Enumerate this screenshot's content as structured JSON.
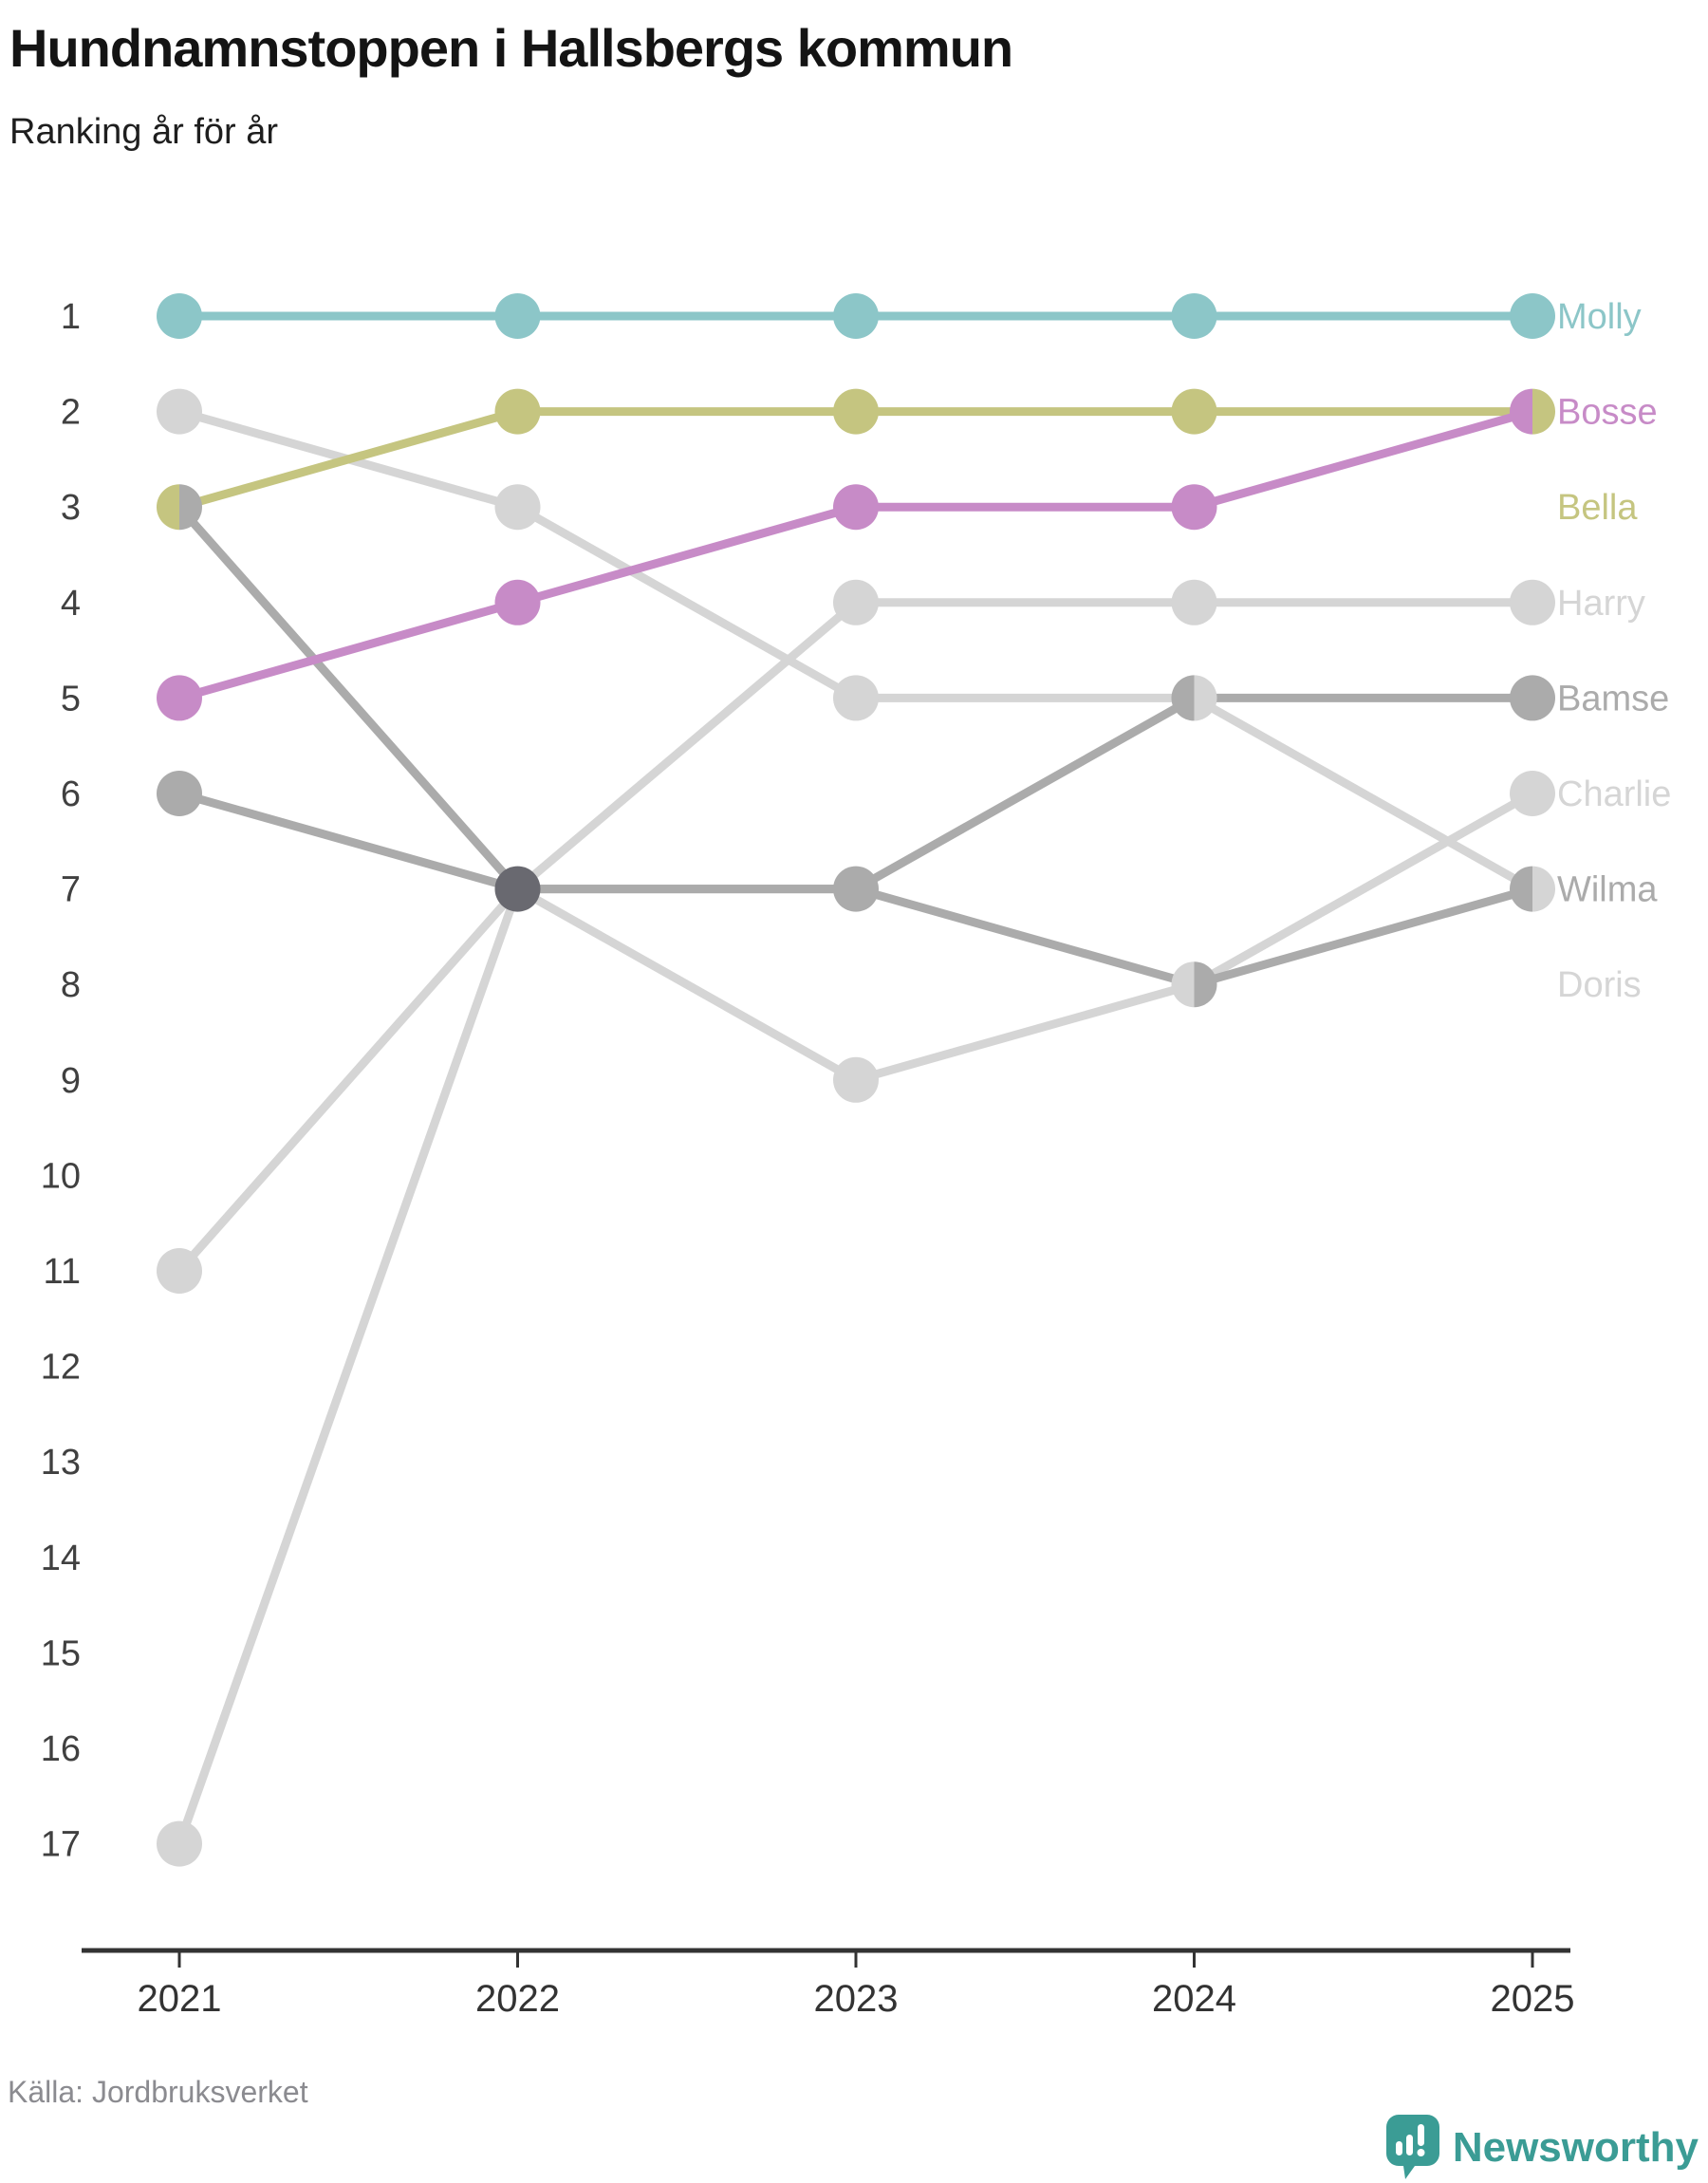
{
  "header": {
    "title": "Hundnamnstoppen i Hallsbergs kommun",
    "subtitle": "Ranking år för år"
  },
  "chart_data": {
    "type": "line",
    "subtype": "bump-ranking",
    "title": "Hundnamnstoppen i Hallsbergs kommun",
    "subtitle": "Ranking år för år",
    "xlabel": "",
    "ylabel": "",
    "x": [
      2021,
      2022,
      2023,
      2024,
      2025
    ],
    "y_ranks": [
      1,
      2,
      3,
      4,
      5,
      6,
      7,
      8,
      9,
      10,
      11,
      12,
      13,
      14,
      15,
      16,
      17
    ],
    "y_axis_inverted": true,
    "grid": false,
    "legend_position": "right-inline-labels",
    "series": [
      {
        "name": "Molly",
        "color": "#8cc6c8",
        "ranks": [
          1,
          1,
          1,
          1,
          1
        ],
        "label_row": 1
      },
      {
        "name": "Bosse",
        "color": "#c78bc7",
        "ranks": [
          5,
          4,
          3,
          3,
          2
        ],
        "label_row": 2
      },
      {
        "name": "Bella",
        "color": "#c5c580",
        "ranks": [
          3,
          2,
          2,
          2,
          2
        ],
        "label_row": 3
      },
      {
        "name": "Harry",
        "color": "#d5d5d5",
        "ranks": [
          11,
          7,
          4,
          4,
          4
        ],
        "label_row": 4
      },
      {
        "name": "Bamse",
        "color": "#ababab",
        "ranks": [
          3,
          7,
          7,
          5,
          5
        ],
        "label_row": 5
      },
      {
        "name": "Charlie",
        "color": "#d5d5d5",
        "ranks": [
          17,
          7,
          9,
          8,
          6
        ],
        "label_row": 6
      },
      {
        "name": "Wilma",
        "color": "#ababab",
        "ranks": [
          6,
          7,
          7,
          8,
          7
        ],
        "label_row": 7
      },
      {
        "name": "Doris",
        "color": "#d5d5d5",
        "ranks": [
          2,
          3,
          5,
          5,
          7
        ],
        "label_row": 8
      }
    ],
    "multi_tie_dot_color": "#696970",
    "axis_color": "#333333",
    "rank_label_color": "#404040",
    "year_label_color": "#333333"
  },
  "footer": {
    "source": "Källa: Jordbruksverket",
    "brand": "Newsworthy",
    "brand_color": "#3b9c95"
  }
}
